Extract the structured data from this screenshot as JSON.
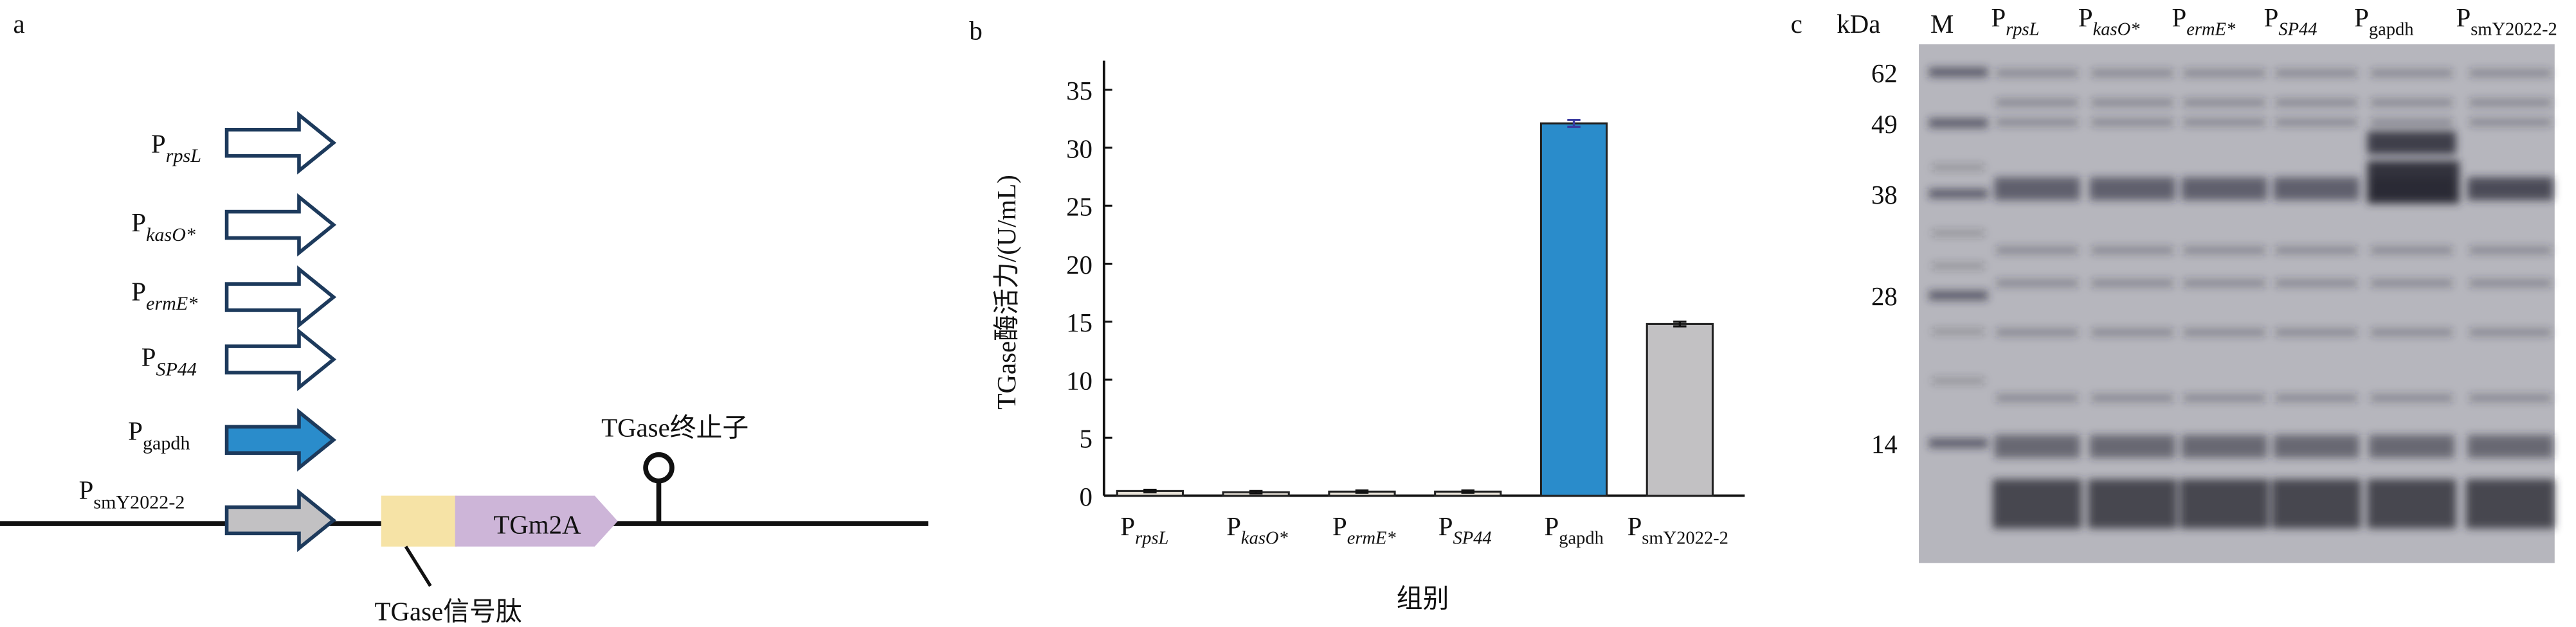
{
  "panel_a": {
    "label": "a",
    "promoters": [
      {
        "main": "P",
        "sub": "rpsL"
      },
      {
        "main": "P",
        "sub": "kasO*"
      },
      {
        "main": "P",
        "sub": "ermE*"
      },
      {
        "main": "P",
        "sub": "SP44"
      },
      {
        "main": "P",
        "sub": "gapdh"
      },
      {
        "main": "P",
        "sub": "smY2022-2"
      }
    ],
    "gene": "TGm2A",
    "terminator": "TGase终止子",
    "signal_peptide": "TGase信号肽"
  },
  "chart_data": {
    "type": "bar",
    "label": "b",
    "ylabel": "TGase酶活力/(U/mL)",
    "xlabel": "组别",
    "categories": [
      {
        "main": "P",
        "sub": "rpsL"
      },
      {
        "main": "P",
        "sub": "kasO*"
      },
      {
        "main": "P",
        "sub": "ermE*"
      },
      {
        "main": "P",
        "sub": "SP44"
      },
      {
        "main": "P",
        "sub": "gapdh"
      },
      {
        "main": "P",
        "sub": "smY2022-2"
      }
    ],
    "values": [
      0.4,
      0.3,
      0.35,
      0.35,
      32.1,
      14.8
    ],
    "errors": [
      0.1,
      0.1,
      0.1,
      0.1,
      0.3,
      0.2
    ],
    "colors": [
      "#e8e2d8",
      "#e8e2d8",
      "#e8e2d8",
      "#e8e2d8",
      "#2a8ccb",
      "#c2c1c3"
    ],
    "ylim": [
      0,
      37.5
    ],
    "yticks": [
      0,
      5,
      10,
      15,
      20,
      25,
      30,
      35
    ]
  },
  "panel_c": {
    "label": "c",
    "unit": "kDa",
    "marker_lane": "M",
    "lanes": [
      {
        "main": "P",
        "sub": "rpsL"
      },
      {
        "main": "P",
        "sub": "kasO*"
      },
      {
        "main": "P",
        "sub": "ermE*"
      },
      {
        "main": "P",
        "sub": "SP44"
      },
      {
        "main": "P",
        "sub": "gapdh"
      },
      {
        "main": "P",
        "sub": "smY2022-2"
      }
    ],
    "markers": [
      62,
      49,
      38,
      28,
      14
    ]
  }
}
